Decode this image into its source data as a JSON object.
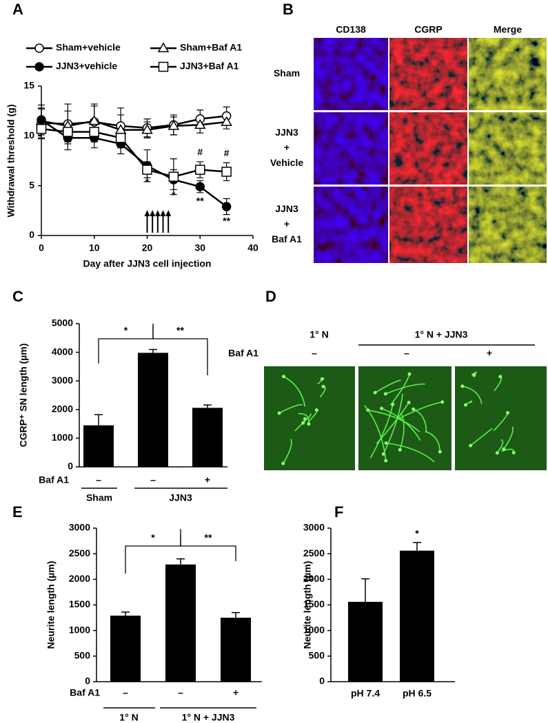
{
  "figure": {
    "panel_labels": [
      "A",
      "B",
      "C",
      "D",
      "E",
      "F"
    ],
    "panel_b": {
      "columns": [
        "CD138",
        "CGRP",
        "Merge"
      ],
      "rows": [
        [
          "Sham"
        ],
        [
          "JJN3",
          "+",
          "Vehicle"
        ],
        [
          "JJN3",
          "+",
          "Baf A1"
        ]
      ]
    },
    "panel_d": {
      "groups": [
        "1° N",
        "1° N + JJN3"
      ],
      "row_label": "Baf A1",
      "conditions": [
        "–",
        "–",
        "+"
      ]
    }
  },
  "chart_data": [
    {
      "type": "line",
      "x_label": "Day after JJN3 cell injection",
      "y_label": "Withdrawal threshold (g)",
      "x": [
        0,
        5,
        10,
        15,
        20,
        25,
        30,
        35
      ],
      "series": [
        {
          "name": "Sham+vehicle",
          "marker": "circle-open",
          "color": "#000000",
          "values": [
            11.3,
            11.2,
            11.4,
            11.0,
            10.8,
            11.1,
            11.7,
            12.0
          ],
          "errors": [
            1.5,
            2.0,
            1.8,
            1.8,
            0.9,
            1.0,
            0.9,
            0.9
          ]
        },
        {
          "name": "Sham+Baf A1",
          "marker": "triangle-open",
          "color": "#000000",
          "values": [
            11.5,
            11.0,
            11.5,
            10.6,
            10.6,
            11.0,
            11.1,
            11.4
          ],
          "errors": [
            1.2,
            1.5,
            1.5,
            1.5,
            0.8,
            0.9,
            0.8,
            0.7
          ]
        },
        {
          "name": "JJN3+vehicle",
          "marker": "circle-filled",
          "color": "#000000",
          "values": [
            11.6,
            9.8,
            9.8,
            9.2,
            7.0,
            5.6,
            4.9,
            2.9
          ],
          "errors": [
            1.5,
            1.2,
            1.0,
            1.0,
            1.6,
            1.0,
            0.6,
            0.8
          ]
        },
        {
          "name": "JJN3+Baf A1",
          "marker": "square-open",
          "color": "#000000",
          "values": [
            10.7,
            10.4,
            10.4,
            9.8,
            6.6,
            5.9,
            6.6,
            6.4
          ],
          "errors": [
            1.0,
            1.0,
            1.0,
            1.0,
            0.8,
            1.8,
            0.8,
            0.9
          ]
        }
      ],
      "annotations": [
        "*",
        "*",
        "**",
        "**",
        "#",
        "#"
      ],
      "xlim": [
        0,
        40
      ],
      "xticks": [
        0,
        10,
        20,
        30,
        40
      ],
      "ylim": [
        0,
        15
      ],
      "yticks": [
        0,
        5,
        10,
        15
      ]
    },
    {
      "type": "bar",
      "y_label": "CGRP⁺ SN length (µm)",
      "row_label": "Baf A1",
      "categories": [
        "–",
        "–",
        "+"
      ],
      "groups": [
        "Sham",
        "JJN3"
      ],
      "values": [
        1450,
        3980,
        2060
      ],
      "errors": [
        370,
        120,
        100
      ],
      "color": "#000000",
      "significance": [
        "*",
        "**"
      ],
      "ylim": [
        0,
        5000
      ],
      "yticks": [
        0,
        1000,
        2000,
        3000,
        4000,
        5000
      ]
    },
    {
      "type": "bar",
      "y_label": "Neurite length (µm)",
      "row_label": "Baf A1",
      "categories": [
        "–",
        "–",
        "+"
      ],
      "groups": [
        "1° N",
        "1° N + JJN3"
      ],
      "values": [
        1290,
        2290,
        1250
      ],
      "errors": [
        70,
        110,
        100
      ],
      "color": "#000000",
      "significance": [
        "*",
        "**"
      ],
      "ylim": [
        0,
        3000
      ],
      "yticks": [
        0,
        500,
        1000,
        1500,
        2000,
        2500,
        3000
      ]
    },
    {
      "type": "bar",
      "y_label": "Neurite length (µm)",
      "categories": [
        "pH 7.4",
        "pH 6.5"
      ],
      "values": [
        1560,
        2560
      ],
      "errors": [
        450,
        160
      ],
      "color": "#000000",
      "significance": [
        "*"
      ],
      "ylim": [
        0,
        3000
      ],
      "yticks": [
        0,
        500,
        1000,
        1500,
        2000,
        2500,
        3000
      ]
    }
  ]
}
